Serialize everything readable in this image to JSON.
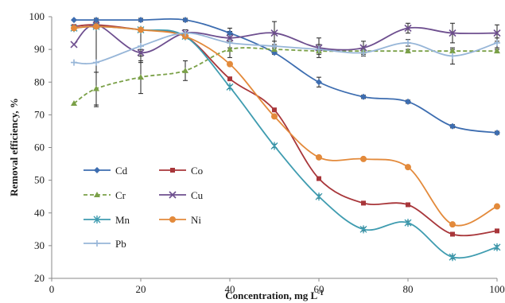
{
  "chart_data": {
    "type": "line",
    "xlabel_main": "Concentration, mg L",
    "xlabel_sup": "-1",
    "ylabel": "Removal efficiency, %",
    "xlim": [
      0,
      100
    ],
    "ylim": [
      20,
      100
    ],
    "xticks": [
      0,
      20,
      40,
      60,
      80,
      100
    ],
    "yticks": [
      20,
      30,
      40,
      50,
      60,
      70,
      80,
      90,
      100
    ],
    "grid": false,
    "legend_position": "lower-left",
    "x": [
      5,
      10,
      20,
      30,
      40,
      50,
      60,
      70,
      80,
      90,
      100
    ],
    "series": [
      {
        "name": "Cd",
        "color": "#3d6db0",
        "marker": "diamond",
        "dash": false,
        "values": [
          99,
          99,
          99,
          99,
          95,
          89,
          80,
          75.5,
          74,
          66.5,
          64.5
        ],
        "errors": [
          0,
          0.5,
          0.5,
          0.5,
          0.5,
          0.5,
          1.5,
          0.5,
          0.5,
          0.5,
          0.5
        ]
      },
      {
        "name": "Co",
        "color": "#a8363a",
        "marker": "square",
        "dash": false,
        "values": [
          97,
          97.5,
          96,
          94,
          81,
          71.5,
          50.5,
          43,
          42.5,
          33.5,
          34.5
        ],
        "errors": [
          0,
          0.5,
          0.5,
          0.5,
          0.5,
          0.5,
          0.5,
          0.5,
          0.5,
          0.5,
          0.5
        ]
      },
      {
        "name": "Cr",
        "color": "#7aa047",
        "marker": "triangle",
        "dash": true,
        "values": [
          73.5,
          78,
          81.5,
          83.5,
          90,
          90,
          89.5,
          89.5,
          89.5,
          89.5,
          89.5
        ],
        "errors": [
          0,
          5,
          5,
          3,
          0.5,
          0.5,
          0.5,
          0.5,
          0.5,
          0.5,
          0.5
        ]
      },
      {
        "name": "Cu",
        "color": "#6e4f8f",
        "marker": "x",
        "dash": false,
        "values": [
          91.5,
          97.5,
          89,
          95,
          93.5,
          95,
          90.5,
          90.5,
          96.5,
          95,
          95
        ],
        "errors": [
          0,
          1,
          1,
          1,
          1,
          3.5,
          3,
          2,
          1.5,
          3,
          2.5
        ]
      },
      {
        "name": "Mn",
        "color": "#3f9cb0",
        "marker": "star",
        "dash": false,
        "values": [
          96.5,
          97,
          96,
          94,
          78.5,
          60.5,
          45,
          35,
          37,
          26.5,
          29.5
        ],
        "errors": [
          0,
          0.5,
          0.5,
          0.5,
          0.5,
          0.5,
          0.5,
          0.5,
          0.5,
          0.5,
          0.5
        ]
      },
      {
        "name": "Ni",
        "color": "#e38a3b",
        "marker": "circle",
        "dash": false,
        "values": [
          96.5,
          97,
          96,
          94,
          85.5,
          69.5,
          57,
          56.5,
          54,
          36.5,
          42
        ],
        "errors": [
          0,
          0.5,
          0.5,
          0.5,
          0.5,
          0.5,
          0.5,
          0.5,
          0.5,
          0.5,
          0.5
        ]
      },
      {
        "name": "Pb",
        "color": "#97b6d8",
        "marker": "plus",
        "dash": false,
        "values": [
          86,
          86,
          91,
          95,
          92,
          91,
          90,
          89,
          92,
          88,
          92
        ],
        "errors": [
          0,
          13.5,
          5,
          1,
          4.5,
          1.5,
          1.5,
          1,
          1,
          2.5,
          1.5
        ]
      }
    ]
  }
}
